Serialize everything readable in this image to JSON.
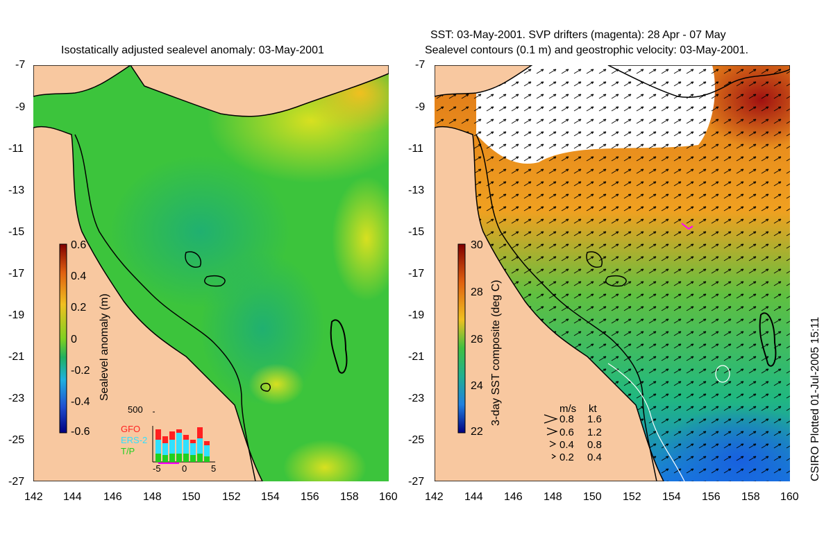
{
  "left_panel": {
    "title": "Isostatically adjusted sealevel anomaly: 03-May-2001",
    "y_ticks": [
      "-7",
      "-9",
      "-11",
      "-13",
      "-15",
      "-17",
      "-19",
      "-21",
      "-23",
      "-25",
      "-27"
    ],
    "x_ticks": [
      "142",
      "144",
      "146",
      "148",
      "150",
      "152",
      "154",
      "156",
      "158",
      "160"
    ],
    "colorbar": {
      "label": "Sealevel anomaly (m)",
      "ticks": [
        "0.6",
        "0.4",
        "0.2",
        "0",
        "-0.2",
        "-0.4",
        "-0.6"
      ]
    },
    "histogram": {
      "ymax_label": "500",
      "x_ticks": [
        "-5",
        "0",
        "5"
      ],
      "satellites": [
        {
          "name": "GFO",
          "color": "#ff2020"
        },
        {
          "name": "ERS-2",
          "color": "#30e0ff"
        },
        {
          "name": "T/P",
          "color": "#20d020"
        }
      ]
    }
  },
  "right_panel": {
    "title_line1": "SST: 03-May-2001. SVP drifters (magenta): 28 Apr - 07 May",
    "title_line2": "Sealevel contours (0.1 m) and geostrophic velocity: 03-May-2001.",
    "y_ticks": [
      "-7",
      "-9",
      "-11",
      "-13",
      "-15",
      "-17",
      "-19",
      "-21",
      "-23",
      "-25",
      "-27"
    ],
    "x_ticks": [
      "142",
      "144",
      "146",
      "148",
      "150",
      "152",
      "154",
      "156",
      "158",
      "160"
    ],
    "colorbar": {
      "label": "3-day SST composite (deg C)",
      "ticks": [
        "30",
        "28",
        "26",
        "24",
        "22"
      ]
    },
    "velocity_legend": {
      "header_ms": "m/s",
      "header_kt": "kt",
      "rows": [
        {
          "ms": "0.8",
          "kt": "1.6"
        },
        {
          "ms": "0.6",
          "kt": "1.2"
        },
        {
          "ms": "0.4",
          "kt": "0.8"
        },
        {
          "ms": "0.2",
          "kt": "0.4"
        }
      ]
    }
  },
  "credit": "CSIRO Plotted 01-Jul-2005 15:11",
  "colors": {
    "land": "#f8c8a0",
    "coast": "#000000",
    "ocean_anomaly": "#3cc43c",
    "sst_warm": "#e07818",
    "sst_cool": "#1878e0",
    "drifters": "#ff00ff"
  }
}
